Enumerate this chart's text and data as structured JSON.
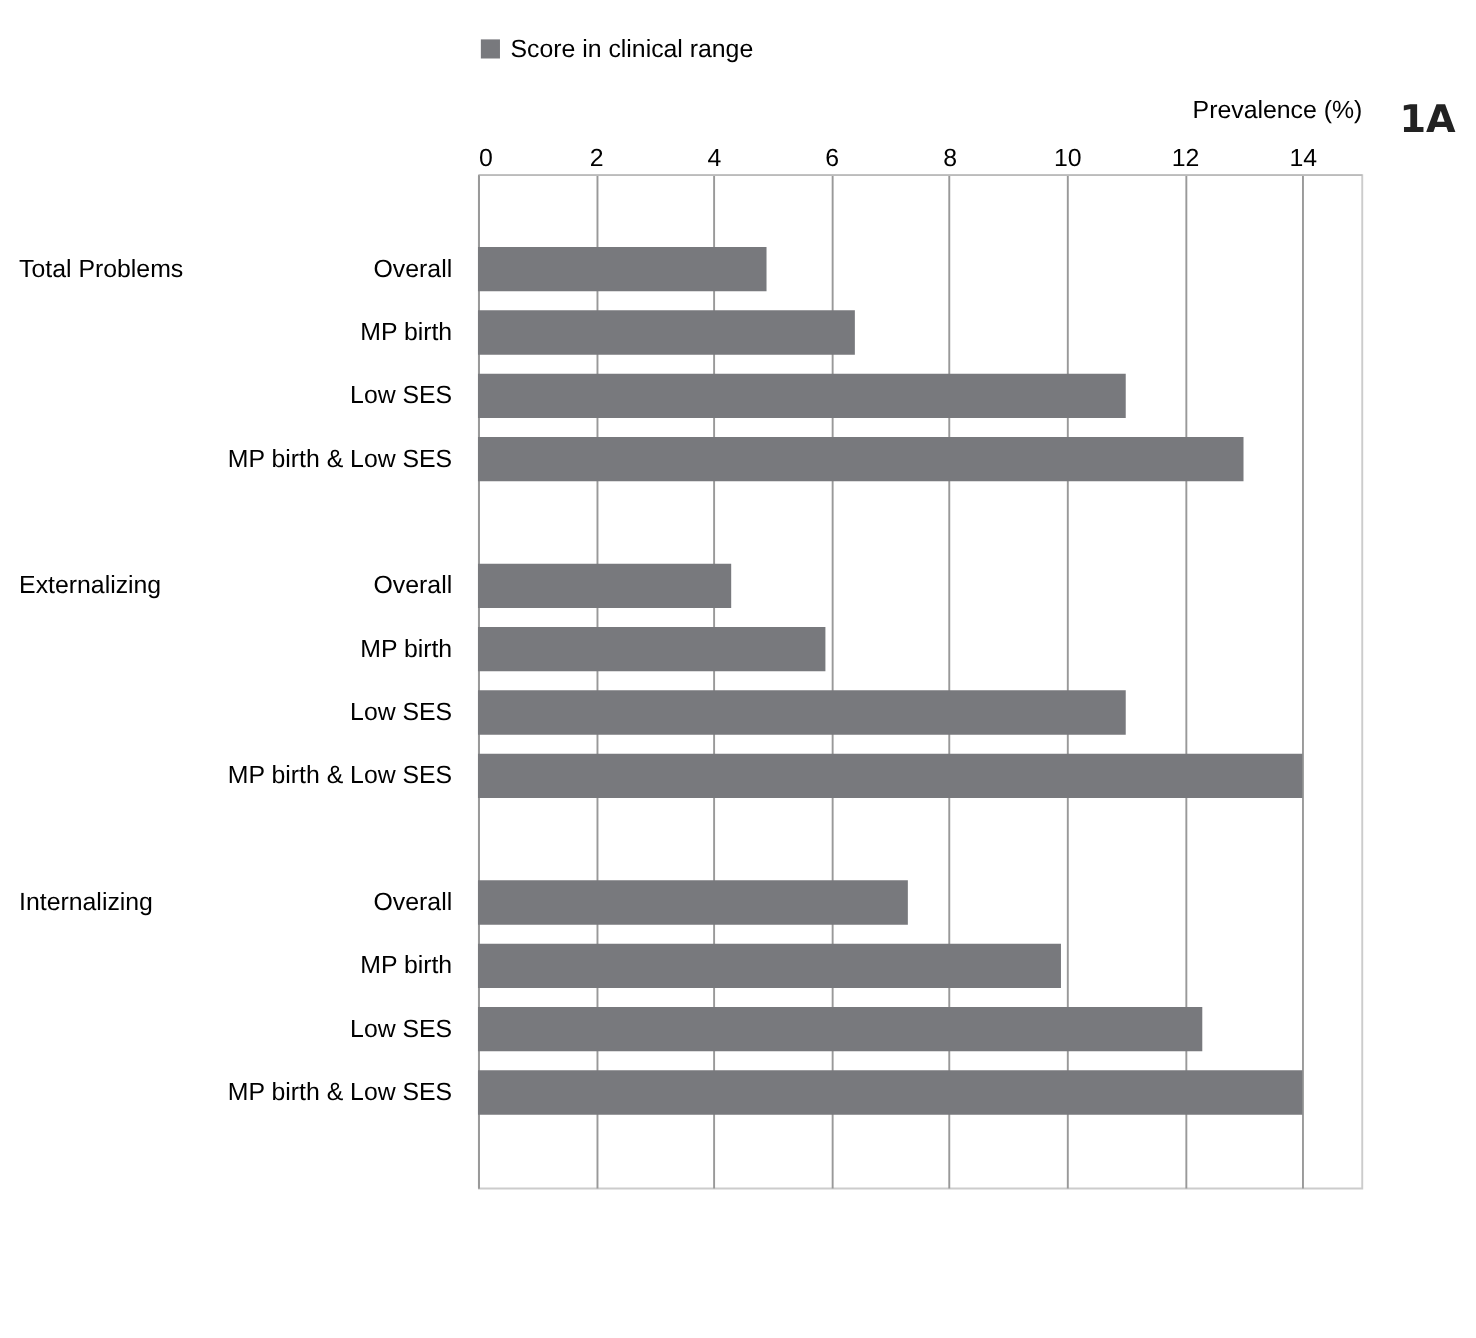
{
  "chart_data": {
    "type": "bar",
    "orientation": "horizontal",
    "xlabel": "Prevalence (%)",
    "categories": [
      null,
      "Overall",
      "MP birth",
      "Low SES",
      "MP birth & Low SES",
      null,
      "Overall",
      "MP birth",
      "Low SES",
      "MP birth & Low SES",
      null,
      "Overall",
      "MP birth",
      "Low SES",
      "MP birth & Low SES",
      null
    ],
    "series": [
      {
        "name": "Score in clinical range",
        "color": "#78797d",
        "values": [
          null,
          4.9,
          6.4,
          11.0,
          13.0,
          null,
          4.3,
          5.9,
          11.0,
          14.0,
          null,
          7.3,
          9.9,
          12.3,
          14.0,
          null
        ]
      }
    ],
    "xlim": [
      0,
      15
    ],
    "xticks": [
      0,
      2,
      4,
      6,
      8,
      10,
      12,
      14
    ],
    "grid": "x",
    "legend": "top",
    "annotations": [
      "Total Problems",
      "Externalizing",
      "Internalizing",
      "1A"
    ]
  }
}
